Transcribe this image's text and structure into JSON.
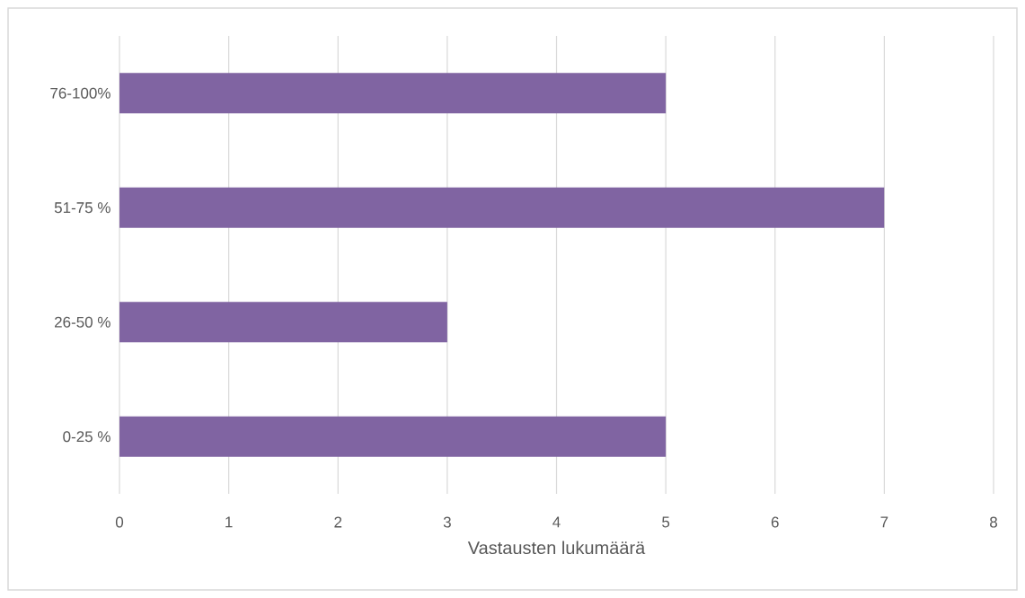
{
  "chart_data": {
    "type": "bar",
    "orientation": "horizontal",
    "categories": [
      "76-100%",
      "51-75 %",
      "26-50 %",
      "0-25 %"
    ],
    "values": [
      5,
      7,
      3,
      5
    ],
    "color": "#8064a2",
    "xlabel": "Vastausten lukumäärä",
    "xlim": [
      0,
      8
    ],
    "xticks": [
      0,
      1,
      2,
      3,
      4,
      5,
      6,
      7,
      8
    ],
    "grid": "x"
  }
}
